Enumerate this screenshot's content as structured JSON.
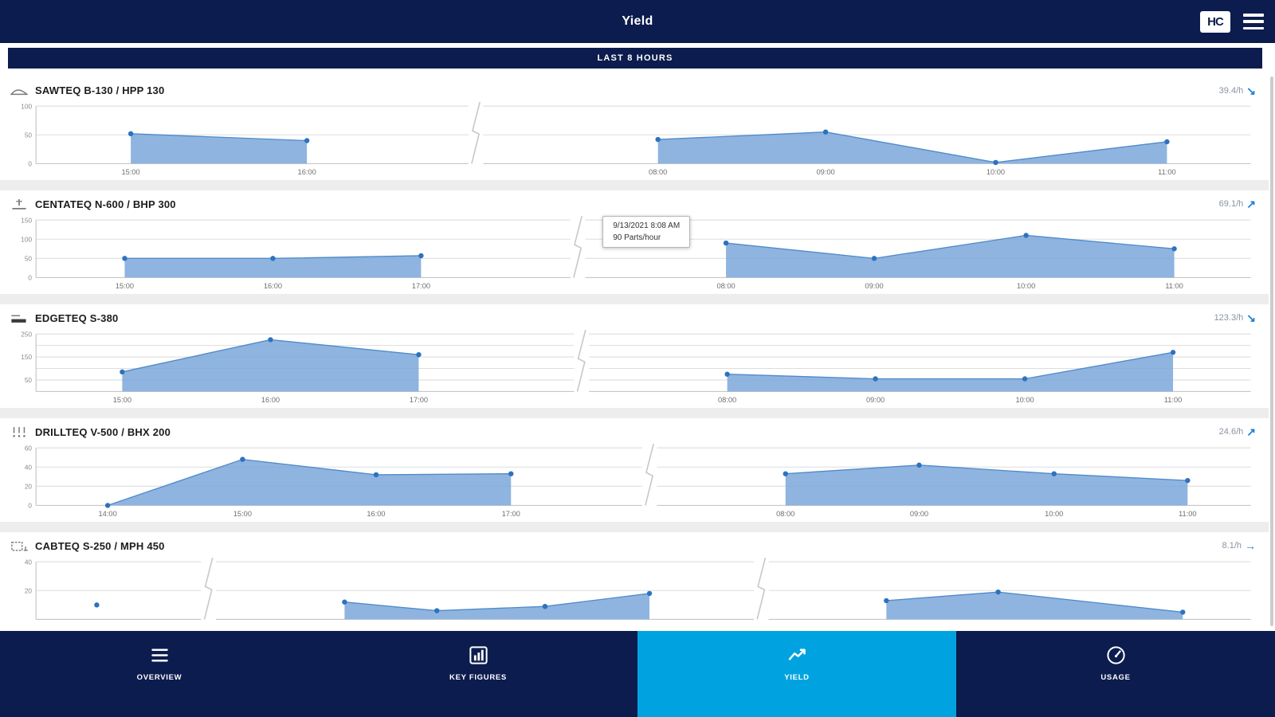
{
  "header": {
    "title": "Yield",
    "logo": "HC"
  },
  "subheader": {
    "label": "LAST 8 HOURS"
  },
  "charts": [
    {
      "icon": "saw-machine-icon",
      "title": "SAWTEQ B-130 / HPP 130",
      "rate": "39.4/h",
      "trend": "down",
      "chart_data": {
        "type": "area",
        "ylim": [
          0,
          100
        ],
        "gridlines": [
          0,
          50,
          100
        ],
        "yticks": [
          0,
          50,
          100
        ],
        "breaks": [
          0.362
        ],
        "segments": [
          {
            "x": [
              "15:00",
              "16:00"
            ],
            "values": [
              52,
              40
            ],
            "fractions": [
              0.078,
              0.223
            ]
          },
          {
            "x": [
              "08:00",
              "09:00",
              "10:00",
              "11:00"
            ],
            "values": [
              42,
              55,
              2,
              38
            ],
            "fractions": [
              0.512,
              0.65,
              0.79,
              0.931
            ]
          }
        ]
      }
    },
    {
      "icon": "cnc-machine-icon",
      "title": "CENTATEQ N-600 / BHP 300",
      "rate": "69.1/h",
      "trend": "up",
      "tooltip": {
        "line1": "9/13/2021 8:08 AM",
        "line2": "90 Parts/hour"
      },
      "chart_data": {
        "type": "area",
        "ylim": [
          0,
          150
        ],
        "gridlines": [
          0,
          50,
          100,
          150
        ],
        "yticks": [
          0,
          50,
          100,
          150
        ],
        "breaks": [
          0.446
        ],
        "segments": [
          {
            "x": [
              "15:00",
              "16:00",
              "17:00"
            ],
            "values": [
              50,
              50,
              57
            ],
            "fractions": [
              0.073,
              0.195,
              0.317
            ]
          },
          {
            "x": [
              "08:00",
              "09:00",
              "10:00",
              "11:00"
            ],
            "values": [
              90,
              50,
              110,
              75
            ],
            "fractions": [
              0.568,
              0.69,
              0.815,
              0.937
            ]
          }
        ]
      }
    },
    {
      "icon": "edgebander-icon",
      "title": "EDGETEQ S-380",
      "rate": "123.3/h",
      "trend": "down",
      "chart_data": {
        "type": "area",
        "ylim": [
          0,
          250
        ],
        "gridlines": [
          0,
          50,
          100,
          150,
          200,
          250
        ],
        "yticks": [
          50,
          150,
          250
        ],
        "breaks": [
          0.449
        ],
        "segments": [
          {
            "x": [
              "15:00",
              "16:00",
              "17:00"
            ],
            "values": [
              85,
              225,
              160
            ],
            "fractions": [
              0.071,
              0.193,
              0.315
            ]
          },
          {
            "x": [
              "08:00",
              "09:00",
              "10:00",
              "11:00"
            ],
            "values": [
              75,
              55,
              55,
              170
            ],
            "fractions": [
              0.569,
              0.691,
              0.814,
              0.936
            ]
          }
        ]
      }
    },
    {
      "icon": "drill-machine-icon",
      "title": "DRILLTEQ V-500 / BHX 200",
      "rate": "24.6/h",
      "trend": "up",
      "chart_data": {
        "type": "area",
        "ylim": [
          0,
          60
        ],
        "gridlines": [
          0,
          20,
          40,
          60
        ],
        "yticks": [
          0,
          20,
          40,
          60
        ],
        "breaks": [
          0.505
        ],
        "segments": [
          {
            "x": [
              "14:00",
              "15:00",
              "16:00",
              "17:00"
            ],
            "values": [
              0,
              48,
              32,
              33
            ],
            "fractions": [
              0.059,
              0.17,
              0.28,
              0.391
            ]
          },
          {
            "x": [
              "08:00",
              "09:00",
              "10:00",
              "11:00"
            ],
            "values": [
              33,
              42,
              33,
              26
            ],
            "fractions": [
              0.617,
              0.727,
              0.838,
              0.948
            ]
          }
        ]
      }
    },
    {
      "icon": "case-clamp-icon",
      "title": "CABTEQ S-250 / MPH 450",
      "rate": "8.1/h",
      "trend": "flat",
      "chart_data": {
        "type": "area",
        "ylim": [
          0,
          40
        ],
        "gridlines": [
          0,
          20,
          40
        ],
        "yticks": [
          20,
          40
        ],
        "breaks": [
          0.142,
          0.597
        ],
        "segments": [
          {
            "x": [
              ""
            ],
            "values": [
              10
            ],
            "fractions": [
              0.05
            ]
          },
          {
            "x": [
              "",
              "",
              "",
              ""
            ],
            "values": [
              12,
              6,
              9,
              18
            ],
            "fractions": [
              0.254,
              0.33,
              0.419,
              0.505
            ]
          },
          {
            "x": [
              "",
              "",
              ""
            ],
            "values": [
              13,
              19,
              5
            ],
            "fractions": [
              0.7,
              0.792,
              0.944
            ]
          }
        ]
      }
    }
  ],
  "bottom_nav": {
    "items": [
      {
        "label": "OVERVIEW",
        "icon": "list-icon",
        "active": false
      },
      {
        "label": "KEY FIGURES",
        "icon": "bar-chart-icon",
        "active": false
      },
      {
        "label": "YIELD",
        "icon": "trend-line-icon",
        "active": true
      },
      {
        "label": "USAGE",
        "icon": "gauge-icon",
        "active": false
      }
    ]
  }
}
